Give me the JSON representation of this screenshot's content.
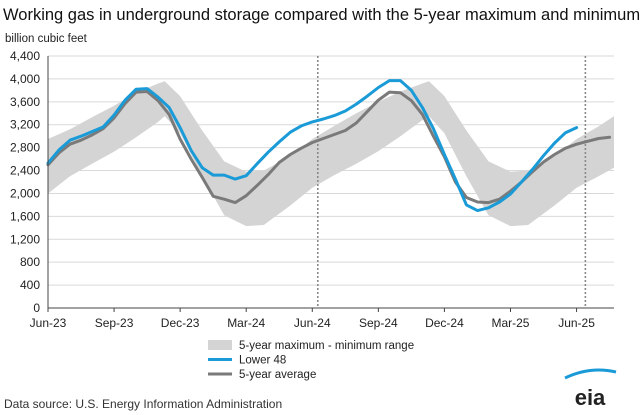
{
  "chart_data": {
    "type": "line",
    "title": "Working gas in underground storage compared with the 5-year maximum and minimum",
    "ylabel": "billion cubic feet",
    "xlabel": "",
    "ylim": [
      0,
      4400
    ],
    "yticks": [
      0,
      400,
      800,
      1200,
      1600,
      2000,
      2400,
      2800,
      3200,
      3600,
      4000,
      4400
    ],
    "x_tick_labels": [
      "Jun-23",
      "Sep-23",
      "Dec-23",
      "Mar-24",
      "Jun-24",
      "Sep-24",
      "Dec-24",
      "Mar-25",
      "Jun-25"
    ],
    "x_range_months": [
      0,
      25.7
    ],
    "reference_lines_months": [
      12.25,
      24.4
    ],
    "series": [
      {
        "name": "5-year maximum - minimum range",
        "kind": "band",
        "color": "#d4d4d4",
        "x": [
          0,
          1,
          2,
          3,
          4,
          5,
          5.3,
          6,
          7,
          8,
          9,
          9.8,
          11,
          12,
          13,
          14,
          15,
          16,
          17,
          17.3,
          18,
          19,
          20,
          21,
          21.8,
          23,
          24,
          25,
          25.7
        ],
        "max": [
          2950,
          3120,
          3330,
          3530,
          3760,
          3920,
          3960,
          3700,
          3100,
          2560,
          2380,
          2400,
          2650,
          2950,
          3180,
          3400,
          3600,
          3780,
          3920,
          3960,
          3700,
          3100,
          2560,
          2380,
          2400,
          2650,
          2950,
          3170,
          3350
        ],
        "min": [
          2000,
          2300,
          2520,
          2730,
          2980,
          3250,
          3350,
          3050,
          2300,
          1620,
          1430,
          1450,
          1790,
          2100,
          2320,
          2520,
          2740,
          3000,
          3280,
          3350,
          3050,
          2300,
          1620,
          1430,
          1450,
          1790,
          2100,
          2300,
          2450
        ]
      },
      {
        "name": "Lower 48",
        "kind": "line",
        "color": "#1a9bd7",
        "x": [
          0,
          0.5,
          1,
          1.5,
          2,
          2.5,
          3,
          3.5,
          4,
          4.5,
          5,
          5.5,
          6,
          6.5,
          7,
          7.5,
          8,
          8.5,
          9,
          9.5,
          10,
          10.5,
          11,
          11.5,
          12,
          12.5,
          13,
          13.5,
          14,
          14.5,
          15,
          15.5,
          16,
          16.5,
          17,
          17.5,
          18,
          18.5,
          19,
          19.5,
          20,
          20.5,
          21,
          21.5,
          22,
          22.5,
          23,
          23.5,
          24
        ],
        "y": [
          2530,
          2760,
          2930,
          3000,
          3080,
          3160,
          3370,
          3630,
          3820,
          3830,
          3680,
          3500,
          3150,
          2750,
          2450,
          2320,
          2320,
          2250,
          2310,
          2520,
          2720,
          2900,
          3070,
          3180,
          3250,
          3300,
          3360,
          3440,
          3560,
          3700,
          3850,
          3970,
          3970,
          3800,
          3500,
          3130,
          2680,
          2250,
          1800,
          1700,
          1750,
          1850,
          1990,
          2200,
          2420,
          2660,
          2880,
          3060,
          3150
        ]
      },
      {
        "name": "5-year average",
        "kind": "line",
        "color": "#7a7a7a",
        "x": [
          0,
          0.5,
          1,
          1.5,
          2,
          2.5,
          3,
          3.5,
          4,
          4.5,
          5,
          5.5,
          6,
          6.5,
          7,
          7.5,
          8,
          8.5,
          9,
          9.5,
          10,
          10.5,
          11,
          11.5,
          12,
          12.5,
          13,
          13.5,
          14,
          14.5,
          15,
          15.5,
          16,
          16.5,
          17,
          17.5,
          18,
          18.5,
          19,
          19.5,
          20,
          20.5,
          21,
          21.5,
          22,
          22.5,
          23,
          23.5,
          24,
          24.5,
          25,
          25.5
        ],
        "y": [
          2500,
          2710,
          2860,
          2930,
          3020,
          3130,
          3320,
          3570,
          3770,
          3780,
          3620,
          3380,
          2950,
          2600,
          2280,
          1950,
          1900,
          1840,
          1960,
          2140,
          2330,
          2540,
          2680,
          2790,
          2890,
          2960,
          3030,
          3100,
          3230,
          3430,
          3630,
          3770,
          3760,
          3620,
          3380,
          3000,
          2640,
          2200,
          1930,
          1850,
          1840,
          1900,
          2040,
          2200,
          2380,
          2550,
          2680,
          2790,
          2860,
          2910,
          2960,
          2980
        ]
      }
    ],
    "legend": [
      {
        "label": "5-year maximum - minimum range",
        "kind": "band",
        "color": "#d4d4d4"
      },
      {
        "label": "Lower 48",
        "kind": "line",
        "color": "#1a9bd7"
      },
      {
        "label": "5-year average",
        "kind": "line",
        "color": "#7a7a7a"
      }
    ],
    "legend_position": "bottom-center"
  },
  "footer": {
    "source": "Data source:  U.S. Energy Information Administration",
    "logo_text": "eia"
  }
}
